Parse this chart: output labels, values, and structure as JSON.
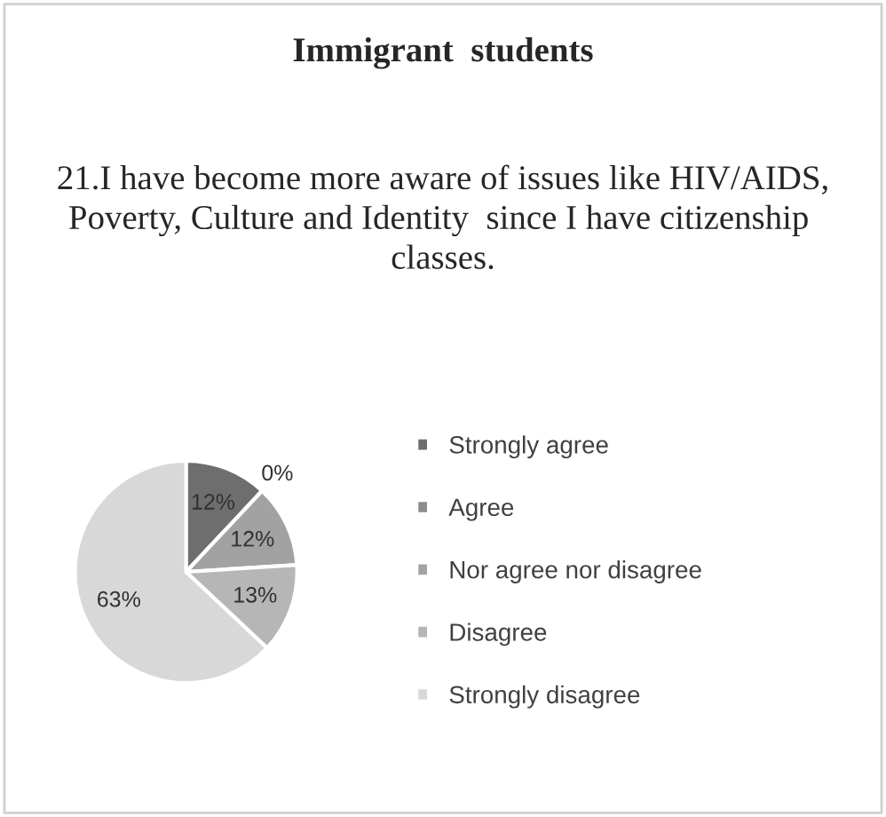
{
  "chart_data": {
    "type": "pie",
    "title": "Immigrant  students",
    "subtitle": "21.I have become more aware of issues like HIV/AIDS, Poverty, Culture and Identity  since I have citizenship  classes.",
    "categories": [
      "Strongly agree",
      "Agree",
      "Nor agree nor disagree",
      "Disagree",
      "Strongly disagree"
    ],
    "values": [
      12,
      0,
      12,
      13,
      63
    ],
    "colors": [
      "#6e6e6e",
      "#8c8c8c",
      "#a2a2a2",
      "#b6b6b6",
      "#d8d8d8"
    ],
    "value_labels": [
      "12%",
      "0%",
      "12%",
      "13%",
      "63%"
    ],
    "legend": "right"
  }
}
